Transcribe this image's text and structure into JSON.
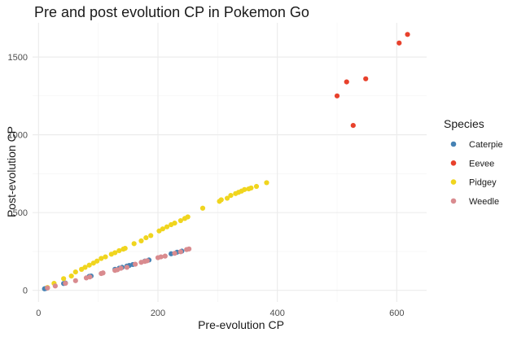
{
  "chart_data": {
    "type": "scatter",
    "title": "Pre and post evolution CP in Pokemon Go",
    "xlabel": "Pre-evolution CP",
    "ylabel": "Post-evolution CP",
    "xlim": [
      -10,
      650
    ],
    "ylim": [
      -75,
      1720
    ],
    "x_ticks": [
      0,
      200,
      400,
      600
    ],
    "y_ticks": [
      0,
      500,
      1000,
      1500
    ],
    "grid": true,
    "legend": {
      "title": "Species",
      "position": "right"
    },
    "series": [
      {
        "name": "Caterpie",
        "color": "#4682b4",
        "points": [
          [
            10,
            10
          ],
          [
            12,
            12
          ],
          [
            42,
            44
          ],
          [
            45,
            47
          ],
          [
            85,
            90
          ],
          [
            88,
            92
          ],
          [
            128,
            135
          ],
          [
            135,
            142
          ],
          [
            140,
            148
          ],
          [
            148,
            156
          ],
          [
            152,
            160
          ],
          [
            158,
            166
          ],
          [
            178,
            188
          ],
          [
            185,
            195
          ],
          [
            222,
            235
          ],
          [
            232,
            245
          ],
          [
            240,
            252
          ]
        ]
      },
      {
        "name": "Eevee",
        "color": "#e8412c",
        "points": [
          [
            500,
            1250
          ],
          [
            516,
            1340
          ],
          [
            527,
            1060
          ],
          [
            548,
            1360
          ],
          [
            604,
            1590
          ],
          [
            618,
            1645
          ]
        ]
      },
      {
        "name": "Pidgey",
        "color": "#f0d51e",
        "points": [
          [
            15,
            18
          ],
          [
            26,
            45
          ],
          [
            42,
            75
          ],
          [
            55,
            92
          ],
          [
            62,
            118
          ],
          [
            72,
            135
          ],
          [
            78,
            148
          ],
          [
            85,
            162
          ],
          [
            92,
            175
          ],
          [
            98,
            188
          ],
          [
            105,
            205
          ],
          [
            112,
            215
          ],
          [
            122,
            232
          ],
          [
            128,
            242
          ],
          [
            135,
            255
          ],
          [
            142,
            265
          ],
          [
            145,
            270
          ],
          [
            160,
            300
          ],
          [
            172,
            318
          ],
          [
            180,
            338
          ],
          [
            188,
            352
          ],
          [
            202,
            382
          ],
          [
            208,
            395
          ],
          [
            215,
            408
          ],
          [
            222,
            422
          ],
          [
            228,
            432
          ],
          [
            238,
            448
          ],
          [
            245,
            462
          ],
          [
            250,
            472
          ],
          [
            275,
            528
          ],
          [
            303,
            572
          ],
          [
            306,
            582
          ],
          [
            316,
            592
          ],
          [
            322,
            610
          ],
          [
            330,
            622
          ],
          [
            335,
            630
          ],
          [
            340,
            638
          ],
          [
            345,
            648
          ],
          [
            352,
            652
          ],
          [
            356,
            658
          ],
          [
            365,
            668
          ],
          [
            382,
            692
          ]
        ]
      },
      {
        "name": "Weedle",
        "color": "#d98b8f",
        "points": [
          [
            15,
            15
          ],
          [
            28,
            28
          ],
          [
            45,
            45
          ],
          [
            62,
            62
          ],
          [
            80,
            80
          ],
          [
            86,
            86
          ],
          [
            105,
            108
          ],
          [
            108,
            112
          ],
          [
            128,
            128
          ],
          [
            132,
            132
          ],
          [
            138,
            142
          ],
          [
            148,
            148
          ],
          [
            162,
            168
          ],
          [
            172,
            180
          ],
          [
            178,
            186
          ],
          [
            182,
            190
          ],
          [
            200,
            210
          ],
          [
            205,
            215
          ],
          [
            212,
            220
          ],
          [
            228,
            238
          ],
          [
            238,
            248
          ],
          [
            248,
            262
          ],
          [
            252,
            266
          ]
        ]
      }
    ]
  }
}
